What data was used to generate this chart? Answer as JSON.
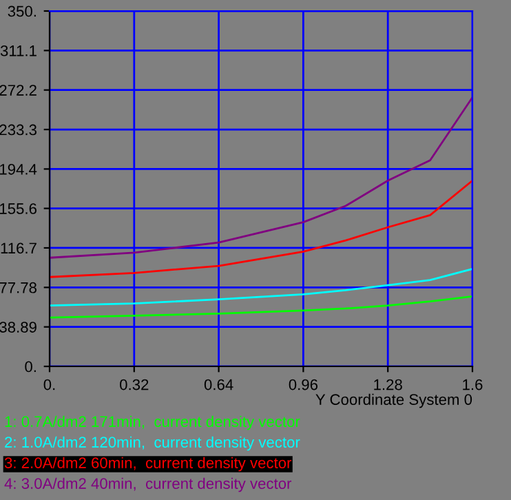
{
  "chart_data": {
    "type": "line",
    "xlabel": "Y Coordinate System 0",
    "x": [
      0,
      0.32,
      0.64,
      0.96,
      1.12,
      1.28,
      1.44,
      1.6
    ],
    "series": [
      {
        "name": "1: 0.7A/dm2 171min,  current density vector",
        "color": "#00ff00",
        "values": [
          48,
          50,
          52,
          55,
          57,
          60,
          64,
          69
        ]
      },
      {
        "name": "2: 1.0A/dm2 120min,  current density vector",
        "color": "#00ffff",
        "values": [
          60,
          62,
          66,
          71,
          75,
          80,
          85,
          96
        ]
      },
      {
        "name": "3: 2.0A/dm2 60min,  current density vector",
        "color": "#ff0000",
        "values": [
          88,
          92,
          99,
          113,
          124,
          137,
          149,
          183
        ]
      },
      {
        "name": "4: 3.0A/dm2 40min,  current density vector",
        "color": "#800080",
        "values": [
          107,
          112,
          122,
          142,
          158,
          183,
          203,
          265
        ]
      }
    ],
    "xlim": [
      0,
      1.6
    ],
    "ylim": [
      0,
      350
    ],
    "xticks": [
      {
        "value": 0,
        "label": "0."
      },
      0.32,
      0.64,
      0.96,
      1.28,
      1.6
    ],
    "yticks": [
      {
        "value": 0,
        "label": "0."
      },
      38.89,
      77.78,
      116.7,
      155.6,
      194.4,
      233.3,
      272.2,
      311.1,
      {
        "value": 350,
        "label": "350."
      }
    ],
    "grid": true,
    "legend": "bottom"
  }
}
